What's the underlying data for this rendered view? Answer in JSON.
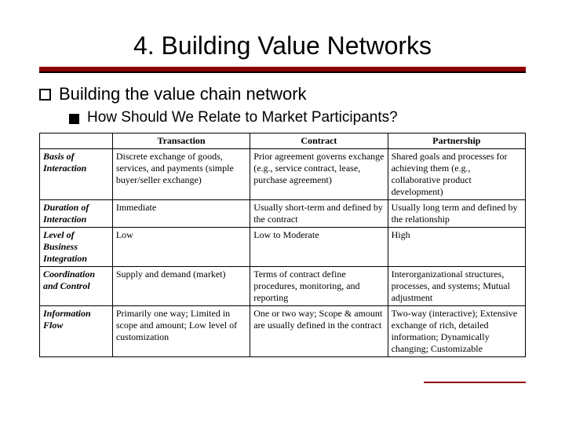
{
  "title": "4. Building Value Networks",
  "level1": "Building the value chain network",
  "level2": "How Should We Relate to Market Participants?",
  "colors": {
    "accent": "#8b0000",
    "text": "#000000",
    "background": "#ffffff"
  },
  "table": {
    "columns": [
      "",
      "Transaction",
      "Contract",
      "Partnership"
    ],
    "rows": [
      {
        "head": "Basis of Interaction",
        "cells": [
          "Discrete exchange of goods, services, and payments (simple buyer/seller exchange)",
          "Prior agreement governs exchange (e.g., service contract, lease, purchase agreement)",
          "Shared goals and processes for achieving them (e.g., collaborative product development)"
        ]
      },
      {
        "head": "Duration of Interaction",
        "cells": [
          "Immediate",
          "Usually short-term and defined by the contract",
          "Usually long term and defined by the relationship"
        ]
      },
      {
        "head": "Level of Business Integration",
        "cells": [
          "Low",
          "Low to Moderate",
          "High"
        ]
      },
      {
        "head": "Coordination and Control",
        "cells": [
          "Supply and demand (market)",
          "Terms of contract define procedures, monitoring, and reporting",
          "Interorganizational structures, processes, and systems; Mutual adjustment"
        ]
      },
      {
        "head": "Information Flow",
        "cells": [
          "Primarily one way; Limited in scope and amount; Low level of customization",
          "One or two way; Scope & amount are usually defined in the contract",
          "Two-way (interactive); Extensive exchange of rich, detailed information; Dynamically changing; Customizable"
        ]
      }
    ]
  }
}
